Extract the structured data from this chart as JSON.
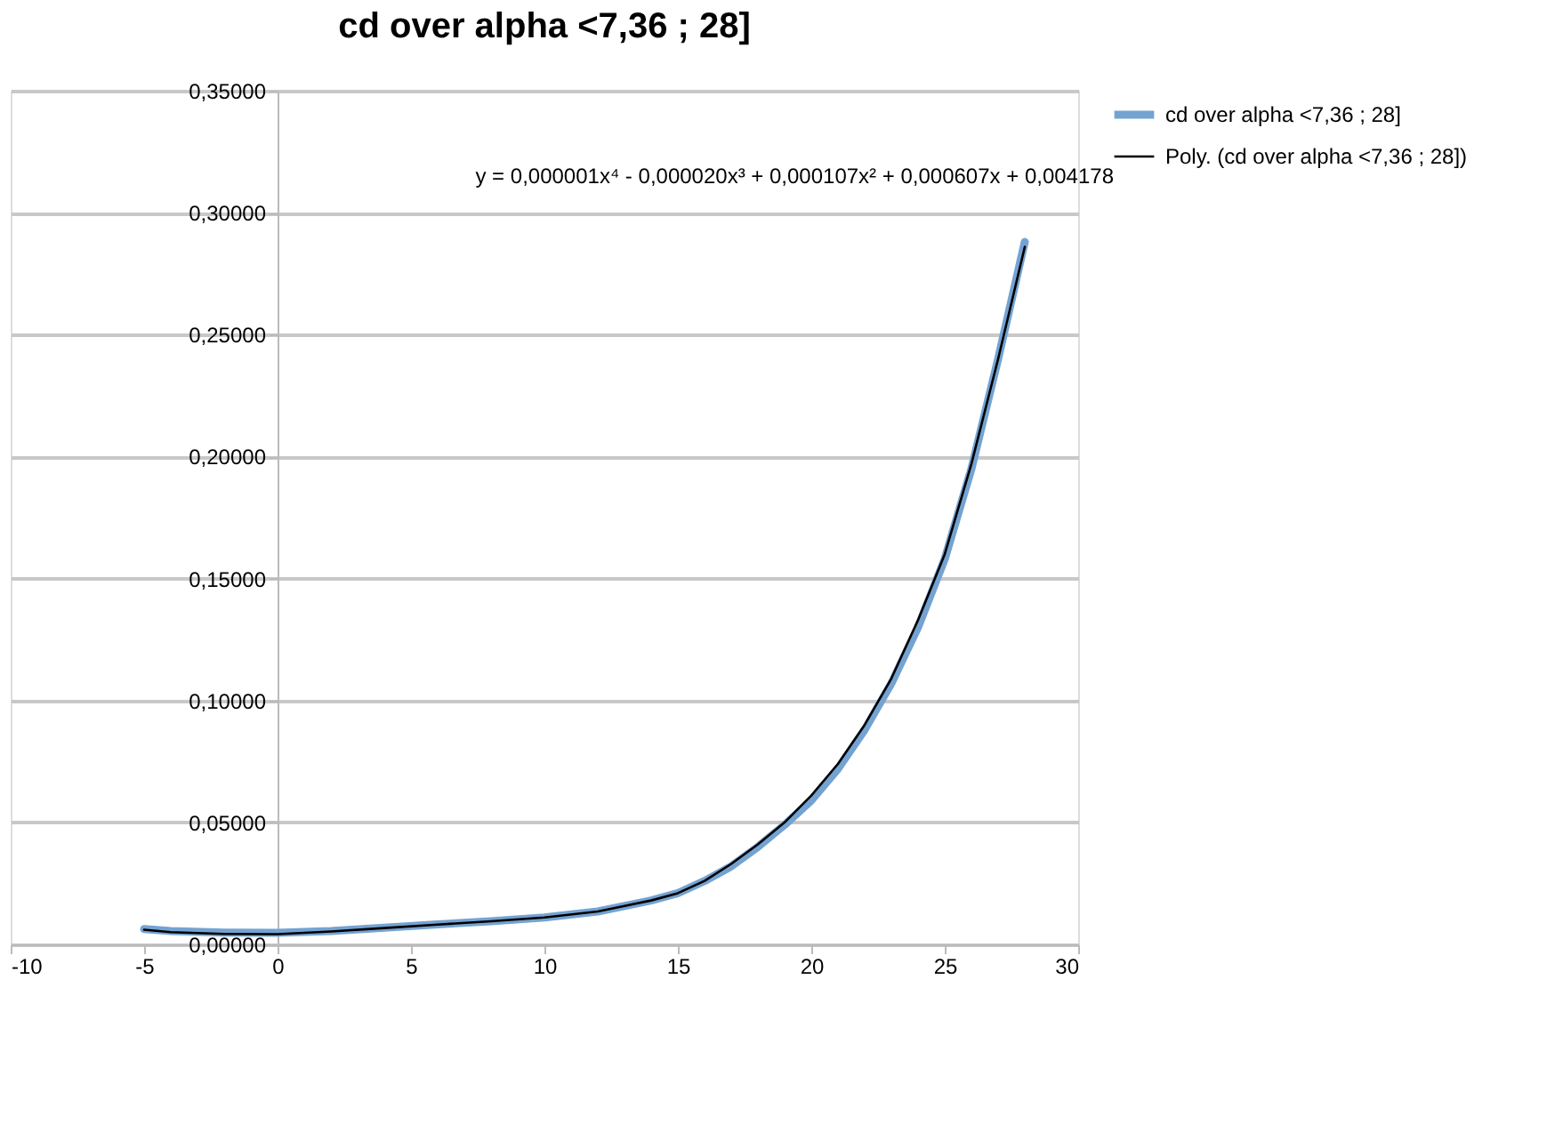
{
  "chart_data": {
    "type": "line",
    "title": "cd over alpha <7,36 ; 28]",
    "x": [
      -5,
      -4,
      -2,
      0,
      2,
      4,
      6,
      8,
      10,
      12,
      14,
      15,
      16,
      17,
      18,
      19,
      20,
      21,
      22,
      23,
      24,
      25,
      26,
      27,
      28
    ],
    "series": [
      {
        "name": "cd over alpha <7,36 ; 28]",
        "color": "#74a3d2",
        "values": [
          0.0063,
          0.0055,
          0.0048,
          0.0047,
          0.0055,
          0.0068,
          0.0082,
          0.0095,
          0.011,
          0.0135,
          0.018,
          0.021,
          0.026,
          0.032,
          0.04,
          0.049,
          0.059,
          0.072,
          0.088,
          0.107,
          0.13,
          0.158,
          0.195,
          0.24,
          0.288
        ]
      },
      {
        "name": "Poly. (cd over alpha <7,36 ; 28])",
        "color": "#000000",
        "values": [
          0.006,
          0.005,
          0.0043,
          0.0042,
          0.0053,
          0.0067,
          0.0081,
          0.0095,
          0.011,
          0.0135,
          0.018,
          0.021,
          0.026,
          0.033,
          0.041,
          0.05,
          0.061,
          0.074,
          0.09,
          0.109,
          0.133,
          0.16,
          0.197,
          0.24,
          0.286
        ]
      }
    ],
    "xlim": [
      -10,
      30
    ],
    "xticks": [
      -10,
      -5,
      0,
      5,
      10,
      15,
      20,
      25,
      30
    ],
    "ylim": [
      0,
      0.35
    ],
    "yticks": [
      {
        "value": 0,
        "label": "0,00000"
      },
      {
        "value": 0.05,
        "label": "0,05000"
      },
      {
        "value": 0.1,
        "label": "0,10000"
      },
      {
        "value": 0.15,
        "label": "0,15000"
      },
      {
        "value": 0.2,
        "label": "0,20000"
      },
      {
        "value": 0.25,
        "label": "0,25000"
      },
      {
        "value": 0.3,
        "label": "0,30000"
      },
      {
        "value": 0.35,
        "label": "0,35000"
      }
    ],
    "annotations": [
      "y = 0,000001x⁴ - 0,000020x³ + 0,000107x² + 0,000607x + 0,004178"
    ],
    "grid": "y",
    "legend": "right",
    "marker": "none",
    "line_style": "solid"
  }
}
